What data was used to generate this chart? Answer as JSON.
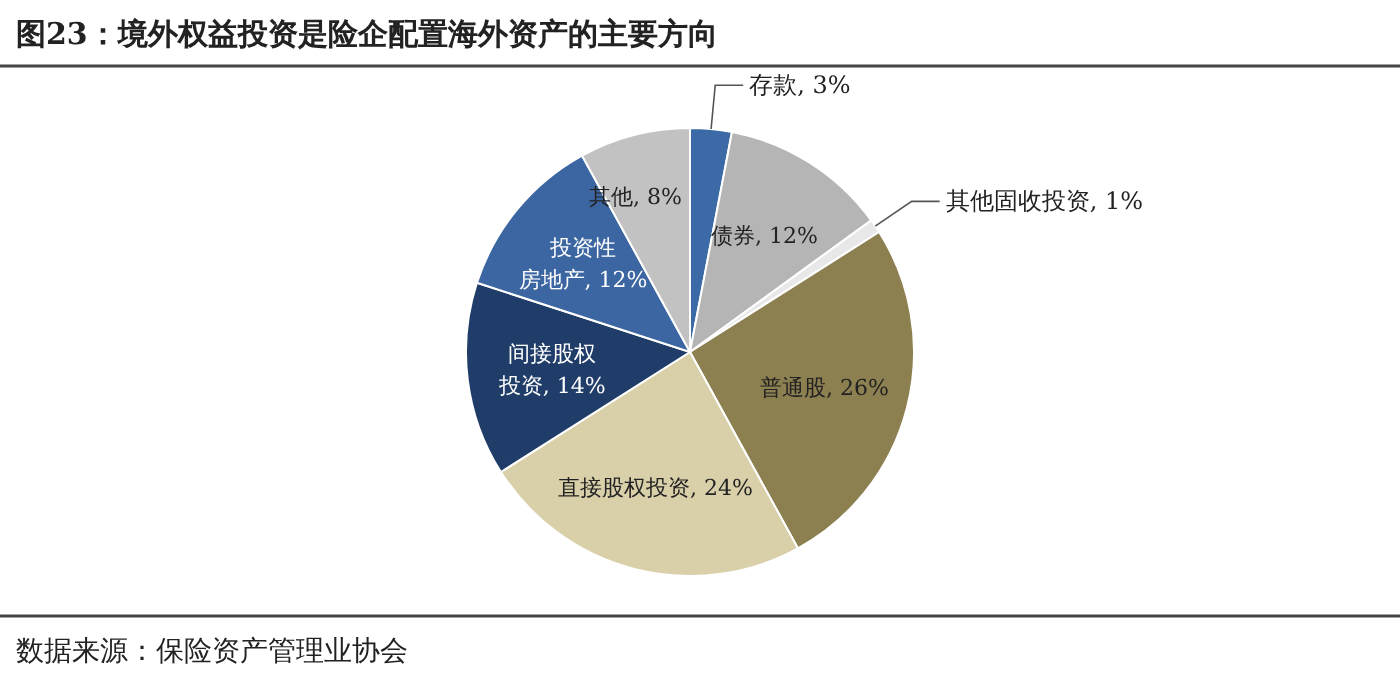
{
  "chart_data": {
    "type": "pie",
    "title": "图23：境外权益投资是险企配置海外资产的主要方向",
    "categories": [
      "存款",
      "债券",
      "其他固收投资",
      "普通股",
      "直接股权投资",
      "间接股权投资",
      "投资性房地产",
      "其他"
    ],
    "values": [
      3,
      12,
      1,
      26,
      24,
      14,
      12,
      8
    ],
    "value_labels": [
      "3%",
      "12%",
      "1%",
      "26%",
      "24%",
      "14%",
      "12%",
      "8%"
    ],
    "colors": [
      "#3b6aa6",
      "#b5b5b5",
      "#e8e8e8",
      "#8c7f50",
      "#d9d0aa",
      "#1f3d68",
      "#3c66a2",
      "#c2c2c2"
    ],
    "annotations": [
      "数据来源：保险资产管理业协会"
    ]
  }
}
